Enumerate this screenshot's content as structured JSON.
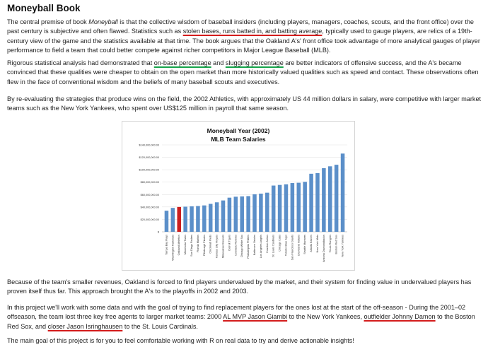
{
  "heading": "Moneyball Book",
  "p1": {
    "a": "The central premise of book ",
    "em": "Moneyball",
    "b": " is that the collective wisdom of baseball insiders (including players, managers, coaches, scouts, and the front office) over the past century is subjective and often flawed. Statistics such as ",
    "hl": "stolen bases, runs batted in, and batting average",
    "c": ", typically used to gauge players, are relics of a 19th-century view of the game and the statistics available at that time. The book argues that the Oakland A's' front office took advantage of more analytical gauges of player performance to field a team that could better compete against richer competitors in Major League Baseball (MLB)."
  },
  "p2": {
    "a": "Rigorous statistical analysis had demonstrated that ",
    "hl1": "on-base percentage",
    "b": " and ",
    "hl2": "slugging percentage",
    "c": " are better indicators of offensive success, and the A's became convinced that these qualities were cheaper to obtain on the open market than more historically valued qualities such as speed and contact. These observations often flew in the face of conventional wisdom and the beliefs of many baseball scouts and executives."
  },
  "p3": "By re-evaluating the strategies that produce wins on the field, the 2002 Athletics, with approximately US 44 million dollars in salary, were competitive with larger market teams such as the New York Yankees, who spent over US$125 million in payroll that same season.",
  "p4": "Because of the team's smaller revenues, Oakland is forced to find players undervalued by the market, and their system for finding value in undervalued players has proven itself thus far. This approach brought the A's to the playoffs in 2002 and 2003.",
  "p5": {
    "a": "In this project we'll work with some data and with the goal of trying to find replacement players for the ones lost at the start of the off-season - During the 2001–02 offseason, the team lost three key free agents to larger market teams: 2000 ",
    "hl1": "AL MVP Jason Giambi",
    "b": " to the New York Yankees, ",
    "hl2": "outfielder Johnny Damon",
    "c": " to the Boston Red Sox, and ",
    "hl3": "closer Jason Isringhausen",
    "d": " to the St. Louis Cardinals."
  },
  "p6": "The main goal of this project is for you to feel comfortable working with R on real data to try and derive actionable insights!",
  "colors": {
    "bar": "#5b8fc9",
    "highlight": "#cc1f1f",
    "underline_red": "#d41c1c",
    "underline_green": "#16a34a"
  },
  "chart_data": {
    "type": "bar",
    "title": "Moneyball Year (2002)",
    "subtitle": "MLB Team Salaries",
    "xlabel": "",
    "ylabel": "",
    "ylim": [
      0,
      140000000
    ],
    "yticks": [
      0,
      20000000,
      40000000,
      60000000,
      80000000,
      100000000,
      120000000,
      140000000
    ],
    "ytick_labels": [
      "$",
      "$20,000,000.00",
      "$40,000,000.00",
      "$60,000,000.00",
      "$80,000,000.00",
      "$100,000,000.00",
      "$120,000,000.00",
      "$140,000,000.00"
    ],
    "grid": true,
    "highlight_category": "Oakland Athletics",
    "categories": [
      "Tampa Bay Rays",
      "Washington Nationals",
      "Oakland Athletics",
      "Minnesota Twins",
      "San Diego Padres",
      "Florida Marlins",
      "Pittsburgh Pirates",
      "Cincinnati Reds",
      "Kansas City Royals",
      "Milwaukee Brewers",
      "Detroit Tigers",
      "Colorado Rockies",
      "Chicago White Sox",
      "Philadelphia Phillies",
      "Baltimore Orioles",
      "Los Angeles Angels",
      "Houston Astros",
      "St. Louis Cardinals",
      "Chicago Cubs",
      "Toronto Blue Jays",
      "San Francisco Giants",
      "Cleveland Indians",
      "Seattle Mariners",
      "Atlanta Braves",
      "New York Mets",
      "Arizona Diamondbacks",
      "Texas Rangers",
      "Boston Red Sox",
      "New York Yankees"
    ],
    "values": [
      34000000,
      38500000,
      40000000,
      40500000,
      41000000,
      41500000,
      42500000,
      45000000,
      47500000,
      50500000,
      55000000,
      56500000,
      57000000,
      57500000,
      60500000,
      61500000,
      63000000,
      74500000,
      75500000,
      76500000,
      78500000,
      79000000,
      80500000,
      93500000,
      94500000,
      102500000,
      105500000,
      108000000,
      126000000
    ]
  }
}
